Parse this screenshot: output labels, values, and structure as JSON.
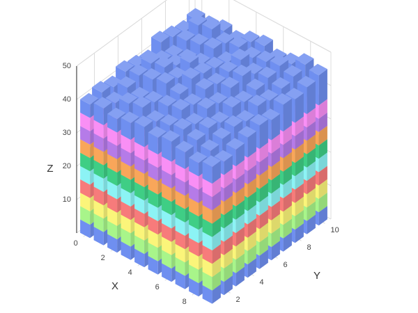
{
  "chart_data": {
    "type": "bar3d",
    "x_label": "X",
    "y_label": "Y",
    "z_label": "Z",
    "x": [
      0,
      1,
      2,
      3,
      4,
      5,
      6,
      7,
      8,
      9
    ],
    "y": [
      1,
      2,
      3,
      4,
      5,
      6,
      7,
      8,
      9,
      10
    ],
    "xlim": [
      -0.5,
      9.5
    ],
    "ylim": [
      0.5,
      10.5
    ],
    "zlim": [
      0,
      50
    ],
    "xticks": [
      0,
      2,
      4,
      6,
      8
    ],
    "yticks": [
      2,
      4,
      6,
      8,
      10
    ],
    "zticks": [
      10,
      20,
      30,
      40,
      50
    ],
    "grid": true,
    "series": [
      {
        "color": "#6f8ff0",
        "values": [
          [
            4,
            4,
            4,
            4,
            4,
            4,
            4,
            4,
            4,
            4
          ],
          [
            4,
            4,
            4,
            4,
            4,
            4,
            4,
            4,
            4,
            4
          ],
          [
            4,
            4,
            4,
            4,
            4,
            4,
            4,
            4,
            4,
            4
          ],
          [
            4,
            4,
            4,
            4,
            4,
            4,
            4,
            4,
            4,
            4
          ],
          [
            4,
            4,
            4,
            4,
            4,
            4,
            4,
            4,
            4,
            4
          ],
          [
            4,
            4,
            4,
            4,
            4,
            4,
            4,
            4,
            4,
            4
          ],
          [
            4,
            4,
            4,
            4,
            4,
            4,
            4,
            4,
            4,
            4
          ],
          [
            4,
            4,
            4,
            4,
            4,
            4,
            4,
            4,
            4,
            4
          ],
          [
            4,
            4,
            4,
            4,
            4,
            4,
            4,
            4,
            4,
            4
          ],
          [
            4,
            4,
            4,
            4,
            4,
            4,
            4,
            4,
            4,
            4
          ]
        ]
      },
      {
        "color": "#a8f58a",
        "values": [
          [
            4,
            4,
            4,
            4,
            4,
            4,
            4,
            4,
            4,
            4
          ],
          [
            4,
            4,
            4,
            4,
            4,
            4,
            4,
            4,
            4,
            4
          ],
          [
            4,
            4,
            4,
            4,
            4,
            4,
            4,
            4,
            4,
            4
          ],
          [
            4,
            4,
            4,
            4,
            4,
            4,
            4,
            4,
            4,
            4
          ],
          [
            4,
            4,
            4,
            4,
            4,
            4,
            4,
            4,
            4,
            4
          ],
          [
            4,
            4,
            4,
            4,
            4,
            4,
            4,
            4,
            4,
            4
          ],
          [
            4,
            4,
            4,
            4,
            4,
            4,
            4,
            4,
            4,
            4
          ],
          [
            4,
            4,
            4,
            4,
            4,
            4,
            4,
            4,
            4,
            4
          ],
          [
            4,
            4,
            4,
            4,
            4,
            4,
            4,
            4,
            4,
            4
          ],
          [
            4,
            4,
            4,
            4,
            4,
            4,
            4,
            4,
            4,
            4
          ]
        ]
      },
      {
        "color": "#fbf57a",
        "values": [
          [
            4,
            4,
            4,
            4,
            4,
            4,
            4,
            4,
            4,
            4
          ],
          [
            4,
            4,
            4,
            4,
            4,
            4,
            4,
            4,
            4,
            4
          ],
          [
            4,
            4,
            4,
            4,
            4,
            4,
            4,
            4,
            4,
            4
          ],
          [
            4,
            4,
            4,
            4,
            4,
            4,
            4,
            4,
            4,
            4
          ],
          [
            4,
            4,
            4,
            4,
            4,
            4,
            4,
            4,
            4,
            4
          ],
          [
            4,
            4,
            4,
            4,
            4,
            4,
            4,
            4,
            4,
            4
          ],
          [
            4,
            4,
            4,
            4,
            4,
            4,
            4,
            4,
            4,
            4
          ],
          [
            4,
            4,
            4,
            4,
            4,
            4,
            4,
            4,
            4,
            4
          ],
          [
            4,
            4,
            4,
            4,
            4,
            4,
            4,
            4,
            4,
            4
          ],
          [
            4,
            4,
            4,
            4,
            4,
            4,
            4,
            4,
            4,
            4
          ]
        ]
      },
      {
        "color": "#f77b7b",
        "values": [
          [
            4,
            4,
            4,
            4,
            4,
            4,
            4,
            4,
            4,
            4
          ],
          [
            4,
            4,
            4,
            4,
            4,
            4,
            4,
            4,
            4,
            4
          ],
          [
            4,
            4,
            4,
            4,
            4,
            4,
            4,
            4,
            4,
            4
          ],
          [
            4,
            4,
            4,
            4,
            4,
            4,
            4,
            4,
            4,
            4
          ],
          [
            4,
            4,
            4,
            4,
            4,
            4,
            4,
            4,
            4,
            4
          ],
          [
            4,
            4,
            4,
            4,
            4,
            4,
            4,
            4,
            4,
            4
          ],
          [
            4,
            4,
            4,
            4,
            4,
            4,
            4,
            4,
            4,
            4
          ],
          [
            4,
            4,
            4,
            4,
            4,
            4,
            4,
            4,
            4,
            4
          ],
          [
            4,
            4,
            4,
            4,
            4,
            4,
            4,
            4,
            4,
            4
          ],
          [
            4,
            4,
            4,
            4,
            4,
            4,
            4,
            4,
            4,
            4
          ]
        ]
      },
      {
        "color": "#8cf3f5",
        "values": [
          [
            4,
            4,
            4,
            4,
            4,
            4,
            4,
            4,
            4,
            4
          ],
          [
            4,
            4,
            4,
            4,
            4,
            4,
            4,
            4,
            4,
            4
          ],
          [
            4,
            4,
            4,
            4,
            4,
            4,
            4,
            4,
            4,
            4
          ],
          [
            4,
            4,
            4,
            4,
            4,
            4,
            4,
            4,
            4,
            4
          ],
          [
            4,
            4,
            4,
            4,
            4,
            4,
            4,
            4,
            4,
            4
          ],
          [
            4,
            4,
            4,
            4,
            4,
            4,
            4,
            4,
            4,
            4
          ],
          [
            4,
            4,
            4,
            4,
            4,
            4,
            4,
            4,
            4,
            4
          ],
          [
            4,
            4,
            4,
            4,
            4,
            4,
            4,
            4,
            4,
            4
          ],
          [
            4,
            4,
            4,
            4,
            4,
            4,
            4,
            4,
            4,
            4
          ],
          [
            4,
            4,
            4,
            4,
            4,
            4,
            4,
            4,
            4,
            4
          ]
        ]
      },
      {
        "color": "#3fce85",
        "values": [
          [
            4,
            4,
            4,
            4,
            4,
            4,
            4,
            4,
            4,
            4
          ],
          [
            4,
            4,
            4,
            4,
            4,
            4,
            4,
            4,
            4,
            4
          ],
          [
            4,
            4,
            4,
            4,
            4,
            4,
            4,
            4,
            4,
            4
          ],
          [
            4,
            4,
            4,
            4,
            4,
            4,
            4,
            4,
            4,
            4
          ],
          [
            4,
            4,
            4,
            4,
            4,
            4,
            4,
            4,
            4,
            4
          ],
          [
            4,
            4,
            4,
            4,
            4,
            4,
            4,
            4,
            4,
            4
          ],
          [
            4,
            4,
            4,
            4,
            4,
            4,
            4,
            4,
            4,
            4
          ],
          [
            4,
            4,
            4,
            4,
            4,
            4,
            4,
            4,
            4,
            4
          ],
          [
            4,
            4,
            4,
            4,
            4,
            4,
            4,
            4,
            4,
            4
          ],
          [
            4,
            4,
            4,
            4,
            4,
            4,
            4,
            4,
            4,
            4
          ]
        ]
      },
      {
        "color": "#f9a65a",
        "values": [
          [
            4,
            4,
            4,
            4,
            4,
            4,
            4,
            4,
            4,
            4
          ],
          [
            4,
            4,
            4,
            4,
            4,
            4,
            4,
            4,
            4,
            4
          ],
          [
            4,
            4,
            4,
            4,
            4,
            4,
            4,
            4,
            4,
            4
          ],
          [
            4,
            4,
            4,
            4,
            4,
            4,
            4,
            4,
            4,
            4
          ],
          [
            4,
            4,
            4,
            4,
            4,
            4,
            4,
            4,
            4,
            4
          ],
          [
            4,
            4,
            4,
            4,
            4,
            4,
            4,
            4,
            4,
            4
          ],
          [
            4,
            4,
            4,
            4,
            4,
            4,
            4,
            4,
            4,
            4
          ],
          [
            4,
            4,
            4,
            4,
            4,
            4,
            4,
            4,
            4,
            4
          ],
          [
            4,
            4,
            4,
            4,
            4,
            4,
            4,
            4,
            4,
            4
          ],
          [
            4,
            4,
            4,
            4,
            4,
            4,
            4,
            4,
            4,
            4
          ]
        ]
      },
      {
        "color": "#b57be8",
        "values": [
          [
            4,
            4,
            4,
            4,
            4,
            4,
            4,
            4,
            4,
            4
          ],
          [
            4,
            4,
            4,
            4,
            4,
            4,
            4,
            4,
            4,
            4
          ],
          [
            4,
            4,
            4,
            4,
            4,
            4,
            4,
            4,
            4,
            4
          ],
          [
            4,
            4,
            4,
            4,
            4,
            4,
            4,
            4,
            4,
            4
          ],
          [
            4,
            4,
            4,
            4,
            4,
            4,
            4,
            4,
            4,
            4
          ],
          [
            4,
            4,
            4,
            4,
            4,
            4,
            4,
            4,
            4,
            4
          ],
          [
            4,
            4,
            4,
            4,
            4,
            4,
            4,
            4,
            4,
            4
          ],
          [
            4,
            4,
            4,
            4,
            4,
            4,
            4,
            4,
            4,
            4
          ],
          [
            4,
            4,
            4,
            4,
            4,
            4,
            4,
            4,
            4,
            4
          ],
          [
            4,
            4,
            4,
            4,
            4,
            4,
            4,
            4,
            4,
            4
          ]
        ]
      },
      {
        "color": "#f98ff5",
        "values": [
          [
            4,
            4,
            4,
            4,
            4,
            4,
            4,
            4,
            4,
            4
          ],
          [
            4,
            4,
            4,
            4,
            4,
            4,
            4,
            4,
            4,
            4
          ],
          [
            4,
            4,
            4,
            4,
            4,
            4,
            4,
            4,
            4,
            4
          ],
          [
            4,
            4,
            4,
            4,
            4,
            4,
            4,
            4,
            4,
            4
          ],
          [
            4,
            4,
            4,
            4,
            4,
            4,
            4,
            4,
            4,
            4
          ],
          [
            4,
            4,
            4,
            4,
            4,
            4,
            4,
            4,
            4,
            4
          ],
          [
            4,
            4,
            4,
            4,
            4,
            4,
            4,
            4,
            4,
            4
          ],
          [
            4,
            4,
            4,
            4,
            4,
            4,
            4,
            4,
            4,
            4
          ],
          [
            4,
            4,
            4,
            4,
            4,
            4,
            4,
            4,
            4,
            4
          ],
          [
            4,
            4,
            4,
            4,
            4,
            4,
            4,
            4,
            4,
            4
          ]
        ]
      },
      {
        "color": "#6f8ff0",
        "values": [
          [
            4,
            5,
            4,
            6,
            5,
            4,
            7,
            6,
            5,
            6
          ],
          [
            5,
            4,
            6,
            7,
            8,
            6,
            5,
            7,
            9,
            6
          ],
          [
            4,
            6,
            5,
            8,
            9,
            7,
            6,
            8,
            10,
            7
          ],
          [
            5,
            7,
            6,
            9,
            8,
            10,
            7,
            9,
            8,
            6
          ],
          [
            6,
            5,
            7,
            8,
            10,
            9,
            8,
            7,
            9,
            8
          ],
          [
            5,
            6,
            8,
            7,
            9,
            8,
            9,
            10,
            8,
            9
          ],
          [
            6,
            7,
            6,
            8,
            7,
            9,
            10,
            8,
            9,
            7
          ],
          [
            5,
            6,
            7,
            6,
            8,
            7,
            8,
            9,
            10,
            8
          ],
          [
            4,
            5,
            6,
            7,
            6,
            8,
            7,
            8,
            9,
            10
          ],
          [
            5,
            4,
            5,
            6,
            7,
            6,
            8,
            7,
            8,
            9
          ]
        ]
      }
    ]
  }
}
